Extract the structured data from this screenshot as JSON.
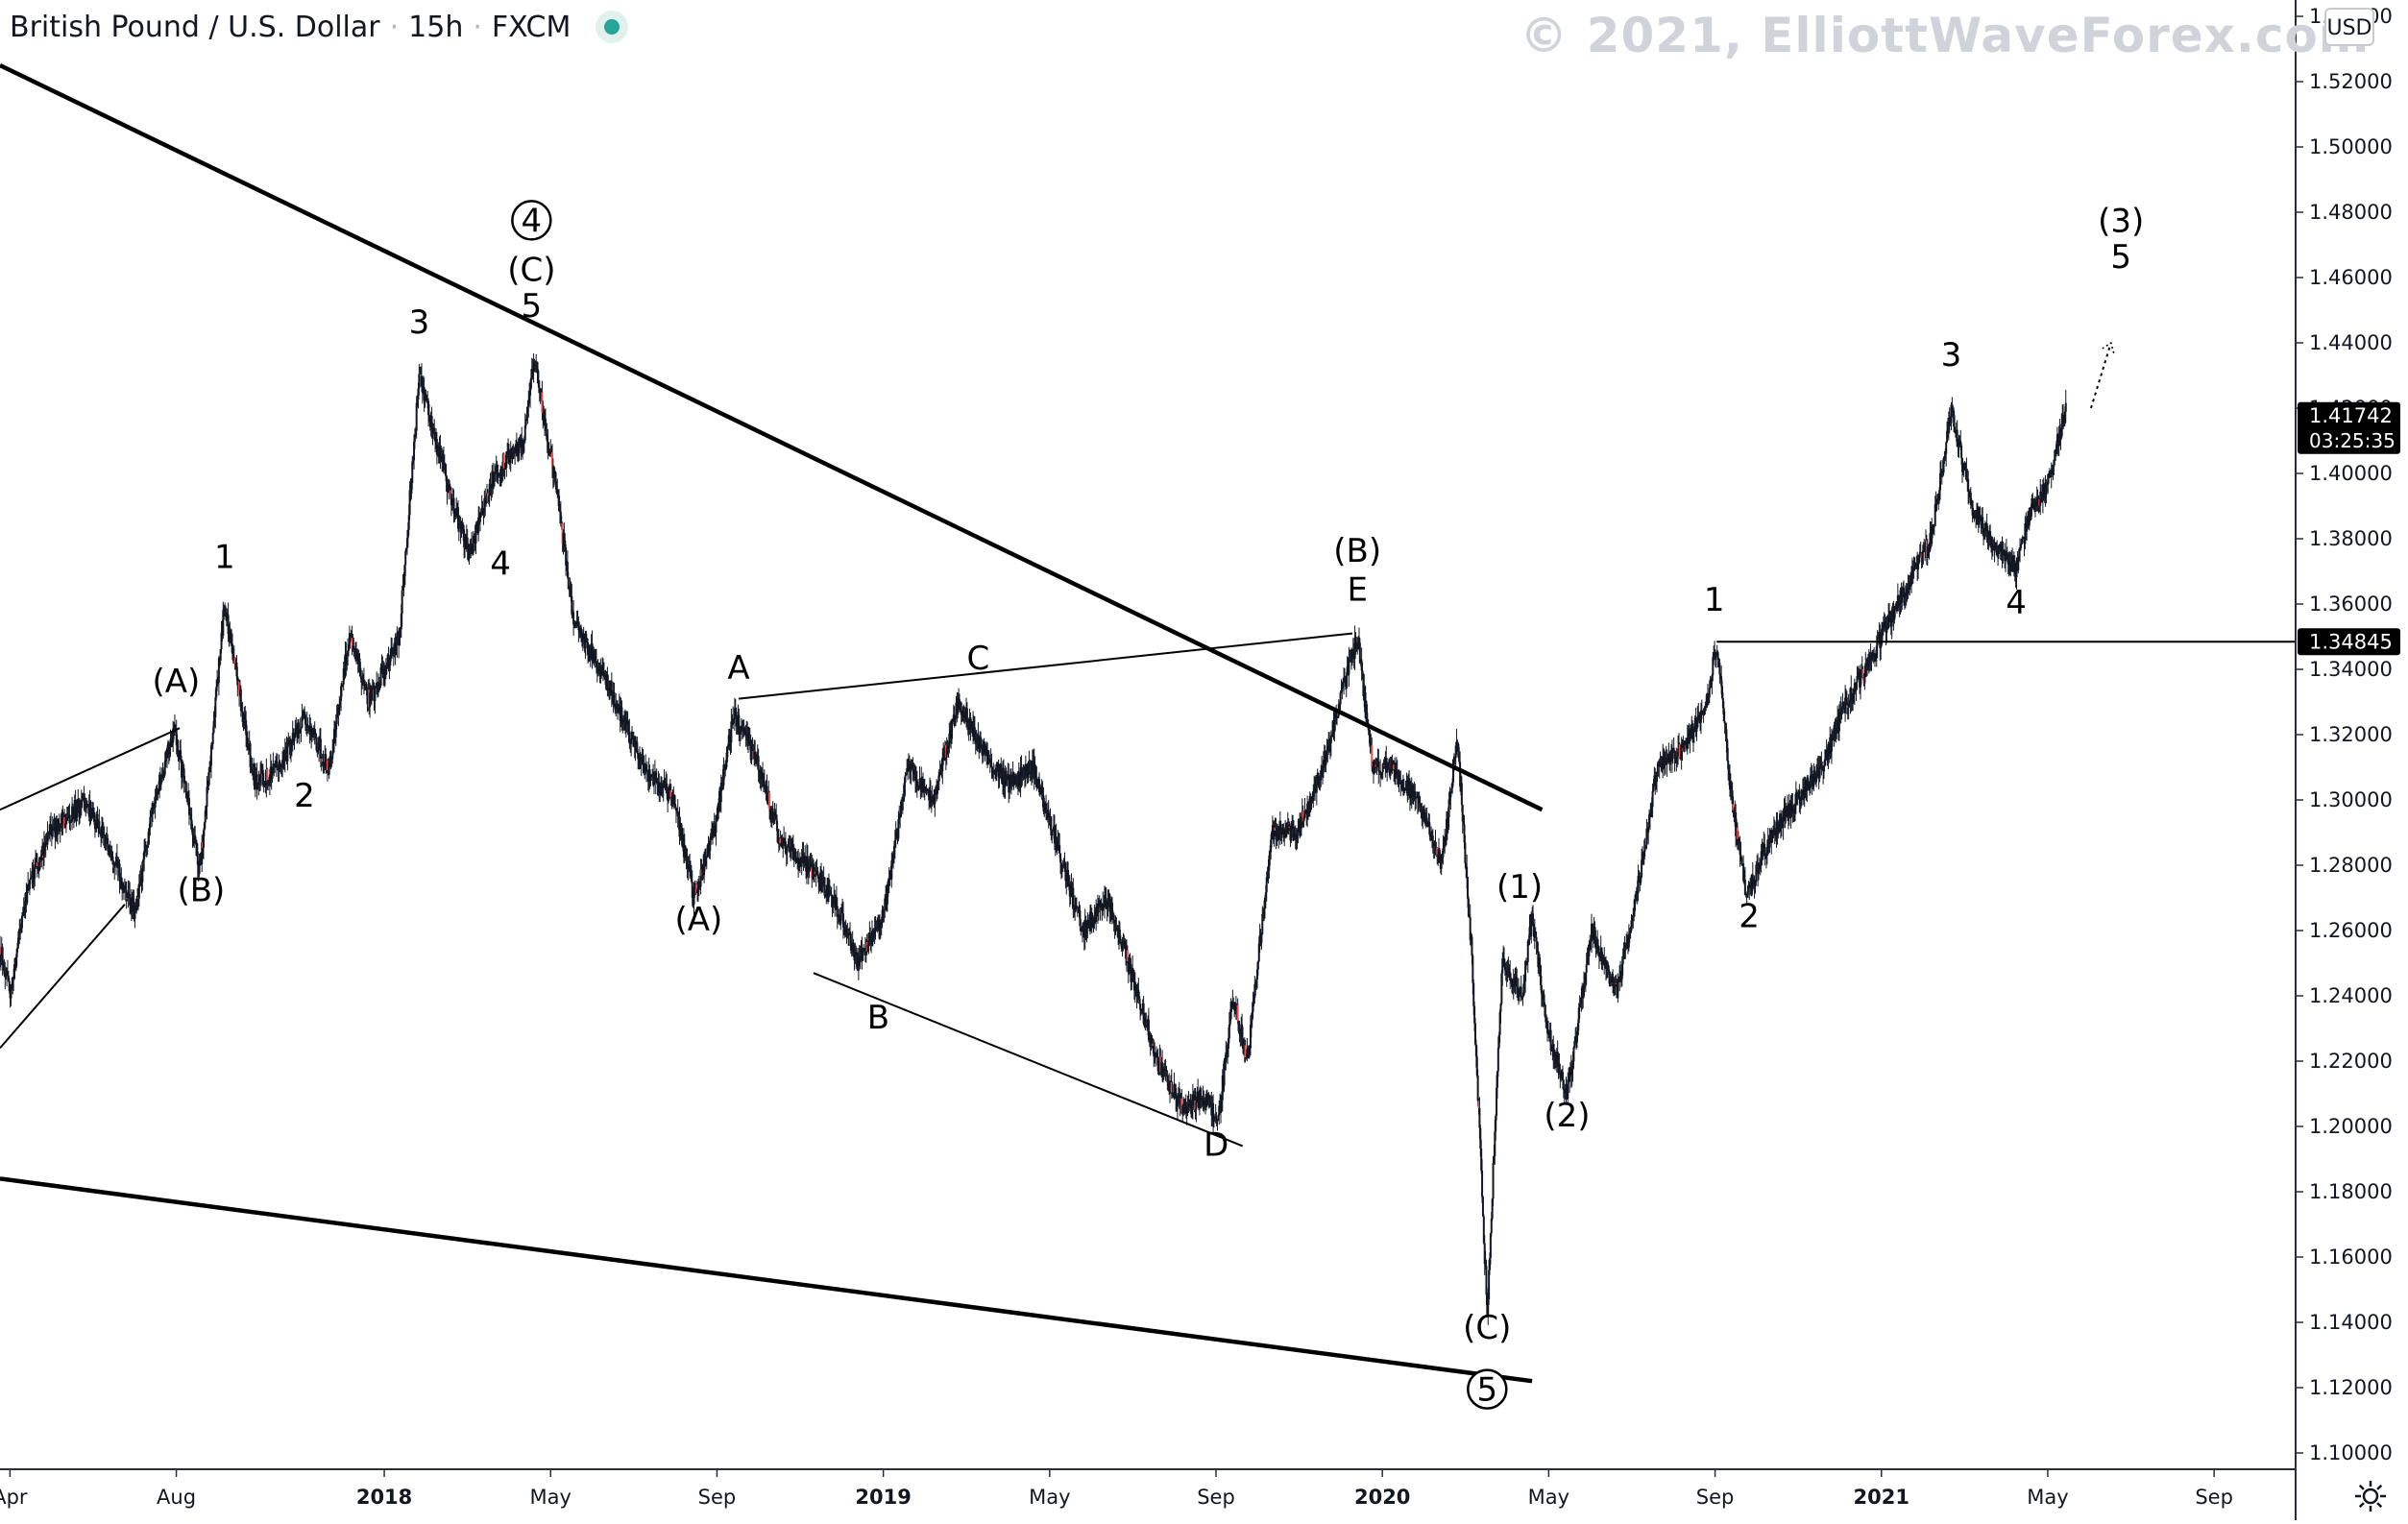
{
  "header": {
    "symbol": "British Pound / U.S. Dollar",
    "interval": "15h",
    "exchange": "FXCM"
  },
  "watermark": "© 2021, ElliottWaveForex.com",
  "currency": "USD",
  "colors": {
    "candle": "#131722",
    "down_accent": "#ef5350",
    "trendline": "#000000",
    "axis_text": "#131722",
    "axis_line": "#2a2e39",
    "price_label_bg": "#000000",
    "price_label_text": "#ffffff",
    "status_dot": "#26a69a"
  },
  "chart_data": {
    "type": "candlestick",
    "title": "British Pound / U.S. Dollar · 15h · FXCM",
    "x_axis": {
      "ticks": [
        {
          "t": 2017.25,
          "label": "Apr"
        },
        {
          "t": 2017.5833,
          "label": "Aug"
        },
        {
          "t": 2018.0,
          "label": "2018"
        },
        {
          "t": 2018.3333,
          "label": "May"
        },
        {
          "t": 2018.6667,
          "label": "Sep"
        },
        {
          "t": 2019.0,
          "label": "2019"
        },
        {
          "t": 2019.3333,
          "label": "May"
        },
        {
          "t": 2019.6667,
          "label": "Sep"
        },
        {
          "t": 2020.0,
          "label": "2020"
        },
        {
          "t": 2020.3333,
          "label": "May"
        },
        {
          "t": 2020.6667,
          "label": "Sep"
        },
        {
          "t": 2021.0,
          "label": "2021"
        },
        {
          "t": 2021.3333,
          "label": "May"
        },
        {
          "t": 2021.6667,
          "label": "Sep"
        }
      ],
      "range": [
        2017.23,
        2021.83
      ]
    },
    "y_axis": {
      "range": [
        1.095,
        1.545
      ],
      "ticks": [
        {
          "v": 1.54,
          "label": "1.54000"
        },
        {
          "v": 1.52,
          "label": "1.52000"
        },
        {
          "v": 1.5,
          "label": "1.50000"
        },
        {
          "v": 1.48,
          "label": "1.48000"
        },
        {
          "v": 1.46,
          "label": "1.46000"
        },
        {
          "v": 1.44,
          "label": "1.44000"
        },
        {
          "v": 1.42,
          "label": "1.42000"
        },
        {
          "v": 1.4,
          "label": "1.40000"
        },
        {
          "v": 1.38,
          "label": "1.38000"
        },
        {
          "v": 1.36,
          "label": "1.36000"
        },
        {
          "v": 1.34,
          "label": "1.34000"
        },
        {
          "v": 1.32,
          "label": "1.32000"
        },
        {
          "v": 1.3,
          "label": "1.30000"
        },
        {
          "v": 1.28,
          "label": "1.28000"
        },
        {
          "v": 1.26,
          "label": "1.26000"
        },
        {
          "v": 1.24,
          "label": "1.24000"
        },
        {
          "v": 1.22,
          "label": "1.22000"
        },
        {
          "v": 1.2,
          "label": "1.20000"
        },
        {
          "v": 1.18,
          "label": "1.18000"
        },
        {
          "v": 1.16,
          "label": "1.16000"
        },
        {
          "v": 1.14,
          "label": "1.14000"
        },
        {
          "v": 1.12,
          "label": "1.12000"
        },
        {
          "v": 1.1,
          "label": "1.10000"
        }
      ]
    },
    "price_path": [
      [
        2017.23,
        1.255
      ],
      [
        2017.25,
        1.24
      ],
      [
        2017.28,
        1.27
      ],
      [
        2017.33,
        1.29
      ],
      [
        2017.4,
        1.3
      ],
      [
        2017.45,
        1.285
      ],
      [
        2017.5,
        1.265
      ],
      [
        2017.54,
        1.3
      ],
      [
        2017.58,
        1.322
      ],
      [
        2017.63,
        1.278
      ],
      [
        2017.68,
        1.36
      ],
      [
        2017.74,
        1.305
      ],
      [
        2017.79,
        1.31
      ],
      [
        2017.84,
        1.325
      ],
      [
        2017.89,
        1.31
      ],
      [
        2017.93,
        1.35
      ],
      [
        2017.97,
        1.33
      ],
      [
        2018.03,
        1.35
      ],
      [
        2018.07,
        1.43
      ],
      [
        2018.12,
        1.4
      ],
      [
        2018.17,
        1.375
      ],
      [
        2018.22,
        1.4
      ],
      [
        2018.28,
        1.41
      ],
      [
        2018.3,
        1.435
      ],
      [
        2018.34,
        1.4
      ],
      [
        2018.38,
        1.355
      ],
      [
        2018.45,
        1.335
      ],
      [
        2018.52,
        1.31
      ],
      [
        2018.58,
        1.3
      ],
      [
        2018.62,
        1.27
      ],
      [
        2018.66,
        1.29
      ],
      [
        2018.7,
        1.326
      ],
      [
        2018.75,
        1.31
      ],
      [
        2018.8,
        1.285
      ],
      [
        2018.85,
        1.28
      ],
      [
        2018.9,
        1.27
      ],
      [
        2018.95,
        1.25
      ],
      [
        2019.0,
        1.265
      ],
      [
        2019.05,
        1.31
      ],
      [
        2019.1,
        1.3
      ],
      [
        2019.15,
        1.33
      ],
      [
        2019.2,
        1.315
      ],
      [
        2019.25,
        1.305
      ],
      [
        2019.3,
        1.31
      ],
      [
        2019.35,
        1.285
      ],
      [
        2019.4,
        1.26
      ],
      [
        2019.45,
        1.27
      ],
      [
        2019.5,
        1.245
      ],
      [
        2019.55,
        1.22
      ],
      [
        2019.6,
        1.205
      ],
      [
        2019.65,
        1.21
      ],
      [
        2019.67,
        1.2
      ],
      [
        2019.7,
        1.24
      ],
      [
        2019.73,
        1.22
      ],
      [
        2019.75,
        1.25
      ],
      [
        2019.78,
        1.29
      ],
      [
        2019.83,
        1.29
      ],
      [
        2019.88,
        1.31
      ],
      [
        2019.95,
        1.35
      ],
      [
        2019.98,
        1.31
      ],
      [
        2020.02,
        1.31
      ],
      [
        2020.07,
        1.3
      ],
      [
        2020.12,
        1.28
      ],
      [
        2020.15,
        1.32
      ],
      [
        2020.18,
        1.25
      ],
      [
        2020.21,
        1.143
      ],
      [
        2020.24,
        1.25
      ],
      [
        2020.28,
        1.24
      ],
      [
        2020.3,
        1.265
      ],
      [
        2020.33,
        1.23
      ],
      [
        2020.37,
        1.21
      ],
      [
        2020.42,
        1.26
      ],
      [
        2020.47,
        1.24
      ],
      [
        2020.52,
        1.28
      ],
      [
        2020.55,
        1.31
      ],
      [
        2020.6,
        1.315
      ],
      [
        2020.65,
        1.33
      ],
      [
        2020.67,
        1.348
      ],
      [
        2020.7,
        1.3
      ],
      [
        2020.73,
        1.27
      ],
      [
        2020.78,
        1.29
      ],
      [
        2020.83,
        1.3
      ],
      [
        2020.88,
        1.31
      ],
      [
        2020.93,
        1.33
      ],
      [
        2020.97,
        1.34
      ],
      [
        2021.0,
        1.35
      ],
      [
        2021.05,
        1.365
      ],
      [
        2021.1,
        1.38
      ],
      [
        2021.14,
        1.42
      ],
      [
        2021.18,
        1.39
      ],
      [
        2021.22,
        1.38
      ],
      [
        2021.27,
        1.37
      ],
      [
        2021.3,
        1.39
      ],
      [
        2021.33,
        1.395
      ],
      [
        2021.37,
        1.42
      ]
    ],
    "trendlines": [
      {
        "name": "upper-wedge-line",
        "from": [
          2017.23,
          1.525
        ],
        "to": [
          2020.32,
          1.297
        ],
        "weight": "thick"
      },
      {
        "name": "lower-wedge-line",
        "from": [
          2017.23,
          1.184
        ],
        "to": [
          2020.3,
          1.122
        ],
        "weight": "thick"
      },
      {
        "name": "triangle-line-ac-e",
        "from": [
          2018.71,
          1.331
        ],
        "to": [
          2019.94,
          1.351
        ],
        "weight": "thin"
      },
      {
        "name": "triangle-line-b-d",
        "from": [
          2018.86,
          1.247
        ],
        "to": [
          2019.72,
          1.194
        ],
        "weight": "thin"
      },
      {
        "name": "channel-upper-left",
        "from": [
          2017.23,
          1.297
        ],
        "to": [
          2017.59,
          1.322
        ],
        "weight": "thin"
      },
      {
        "name": "channel-lower-left",
        "from": [
          2017.23,
          1.224
        ],
        "to": [
          2017.48,
          1.268
        ],
        "weight": "thin"
      },
      {
        "name": "level-line",
        "from": [
          2020.67,
          1.34845
        ],
        "to": [
          2021.83,
          1.34845
        ],
        "weight": "thin"
      }
    ],
    "projection": {
      "from": [
        2021.42,
        1.42
      ],
      "to": [
        2021.46,
        1.44
      ]
    },
    "wave_labels": [
      {
        "text": "(A)",
        "t": 2017.583,
        "v": 1.333
      },
      {
        "text": "(B)",
        "t": 2017.633,
        "v": 1.269
      },
      {
        "text": "1",
        "t": 2017.68,
        "v": 1.371
      },
      {
        "text": "2",
        "t": 2017.84,
        "v": 1.298
      },
      {
        "text": "3",
        "t": 2018.07,
        "v": 1.443
      },
      {
        "text": "4",
        "t": 2018.233,
        "v": 1.369
      },
      {
        "text": "(C)",
        "t": 2018.295,
        "v": 1.459
      },
      {
        "text": "5",
        "t": 2018.295,
        "v": 1.448
      },
      {
        "text": "4",
        "t": 2018.295,
        "v": 1.474,
        "circled": true
      },
      {
        "text": "(A)",
        "t": 2018.63,
        "v": 1.26
      },
      {
        "text": "A",
        "t": 2018.71,
        "v": 1.337
      },
      {
        "text": "B",
        "t": 2018.99,
        "v": 1.23
      },
      {
        "text": "C",
        "t": 2019.19,
        "v": 1.34
      },
      {
        "text": "D",
        "t": 2019.667,
        "v": 1.191
      },
      {
        "text": "(B)",
        "t": 2019.95,
        "v": 1.373
      },
      {
        "text": "E",
        "t": 2019.95,
        "v": 1.361
      },
      {
        "text": "(C)",
        "t": 2020.21,
        "v": 1.135
      },
      {
        "text": "5",
        "t": 2020.21,
        "v": 1.116,
        "circled": true
      },
      {
        "text": "(1)",
        "t": 2020.275,
        "v": 1.27
      },
      {
        "text": "(2)",
        "t": 2020.37,
        "v": 1.2
      },
      {
        "text": "1",
        "t": 2020.665,
        "v": 1.358
      },
      {
        "text": "2",
        "t": 2020.735,
        "v": 1.261
      },
      {
        "text": "3",
        "t": 2021.14,
        "v": 1.433
      },
      {
        "text": "4",
        "t": 2021.27,
        "v": 1.357
      },
      {
        "text": "(3)",
        "t": 2021.48,
        "v": 1.474
      },
      {
        "text": "5",
        "t": 2021.48,
        "v": 1.463
      }
    ],
    "price_labels": [
      {
        "v": 1.41742,
        "price": "1.41742",
        "countdown": "03:25:35"
      },
      {
        "v": 1.34845,
        "price": "1.34845"
      }
    ]
  }
}
